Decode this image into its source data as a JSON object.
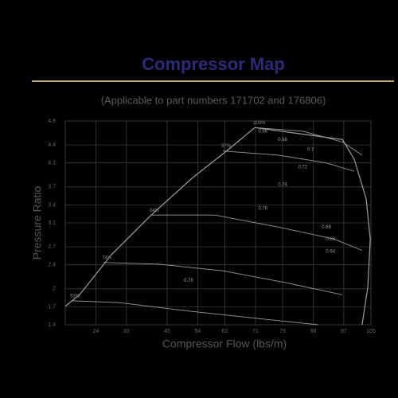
{
  "chart_data": {
    "type": "line",
    "title": "Compressor Map",
    "subtitle": "(Applicable to part numbers 171702 and 176806)",
    "x_label": "Compressor Flow (lbs/m)",
    "y_label": "Pressure Ratio",
    "xlim": [
      15,
      105
    ],
    "ylim": [
      1.4,
      4.8
    ],
    "xticks": [
      24,
      33,
      45,
      54,
      62,
      71,
      79,
      88,
      97,
      105
    ],
    "yticks": [
      1.4,
      1.7,
      2.0,
      2.4,
      2.7,
      3.1,
      3.4,
      3.7,
      4.1,
      4.4,
      4.8
    ],
    "grid": true,
    "series": [
      {
        "name": "100%",
        "color": "#9a9a9a",
        "x": [
          70.8,
          84.9,
          96.6,
          102.4
        ],
        "y": [
          4.69,
          4.63,
          4.45,
          4.23
        ]
      },
      {
        "name": "97%",
        "color": "#9a9a9a",
        "x": [
          61.4,
          77.8,
          91.9,
          100.1
        ],
        "y": [
          4.3,
          4.23,
          4.1,
          3.96
        ]
      },
      {
        "name": "84%",
        "color": "#9a9a9a",
        "x": [
          40.3,
          59.1,
          77.8,
          94.2,
          102.4
        ],
        "y": [
          3.23,
          3.23,
          3.03,
          2.83,
          2.64
        ]
      },
      {
        "name": "74%",
        "color": "#9a9a9a",
        "x": [
          26.3,
          42.7,
          61.4,
          80.2,
          96.6
        ],
        "y": [
          2.44,
          2.41,
          2.3,
          2.1,
          1.9
        ]
      },
      {
        "name": "53%",
        "color": "#9a9a9a",
        "x": [
          16.9,
          30.9,
          49.7,
          70.8,
          89.5
        ],
        "y": [
          1.8,
          1.77,
          1.64,
          1.51,
          1.4
        ]
      }
    ],
    "boundaries": [
      {
        "x": [
          15,
          19.2,
          28.6,
          40.3,
          52.0,
          63.8,
          70.8
        ],
        "y": [
          1.71,
          1.9,
          2.57,
          3.23,
          3.83,
          4.36,
          4.69
        ]
      },
      {
        "x": [
          70.8,
          96.6,
          100.1,
          103.6,
          104.8,
          104.1,
          102.4
        ],
        "y": [
          4.69,
          4.49,
          4.16,
          3.5,
          2.83,
          2.04,
          1.4
        ]
      }
    ],
    "annotations": [
      {
        "text": "0.66",
        "x": 73.2,
        "y": 4.63
      },
      {
        "text": "0.68",
        "x": 79.0,
        "y": 4.49
      },
      {
        "text": "0.7",
        "x": 87.2,
        "y": 4.32
      },
      {
        "text": "0.72",
        "x": 84.9,
        "y": 4.03
      },
      {
        "text": "0.74",
        "x": 79.0,
        "y": 3.74
      },
      {
        "text": "0.76",
        "x": 73.2,
        "y": 3.34
      },
      {
        "text": "0.78",
        "x": 51.3,
        "y": 2.14
      },
      {
        "text": "0.68",
        "x": 91.9,
        "y": 3.03
      },
      {
        "text": "0.66",
        "x": 93.1,
        "y": 2.83
      },
      {
        "text": "0.64",
        "x": 93.1,
        "y": 2.62
      }
    ]
  }
}
